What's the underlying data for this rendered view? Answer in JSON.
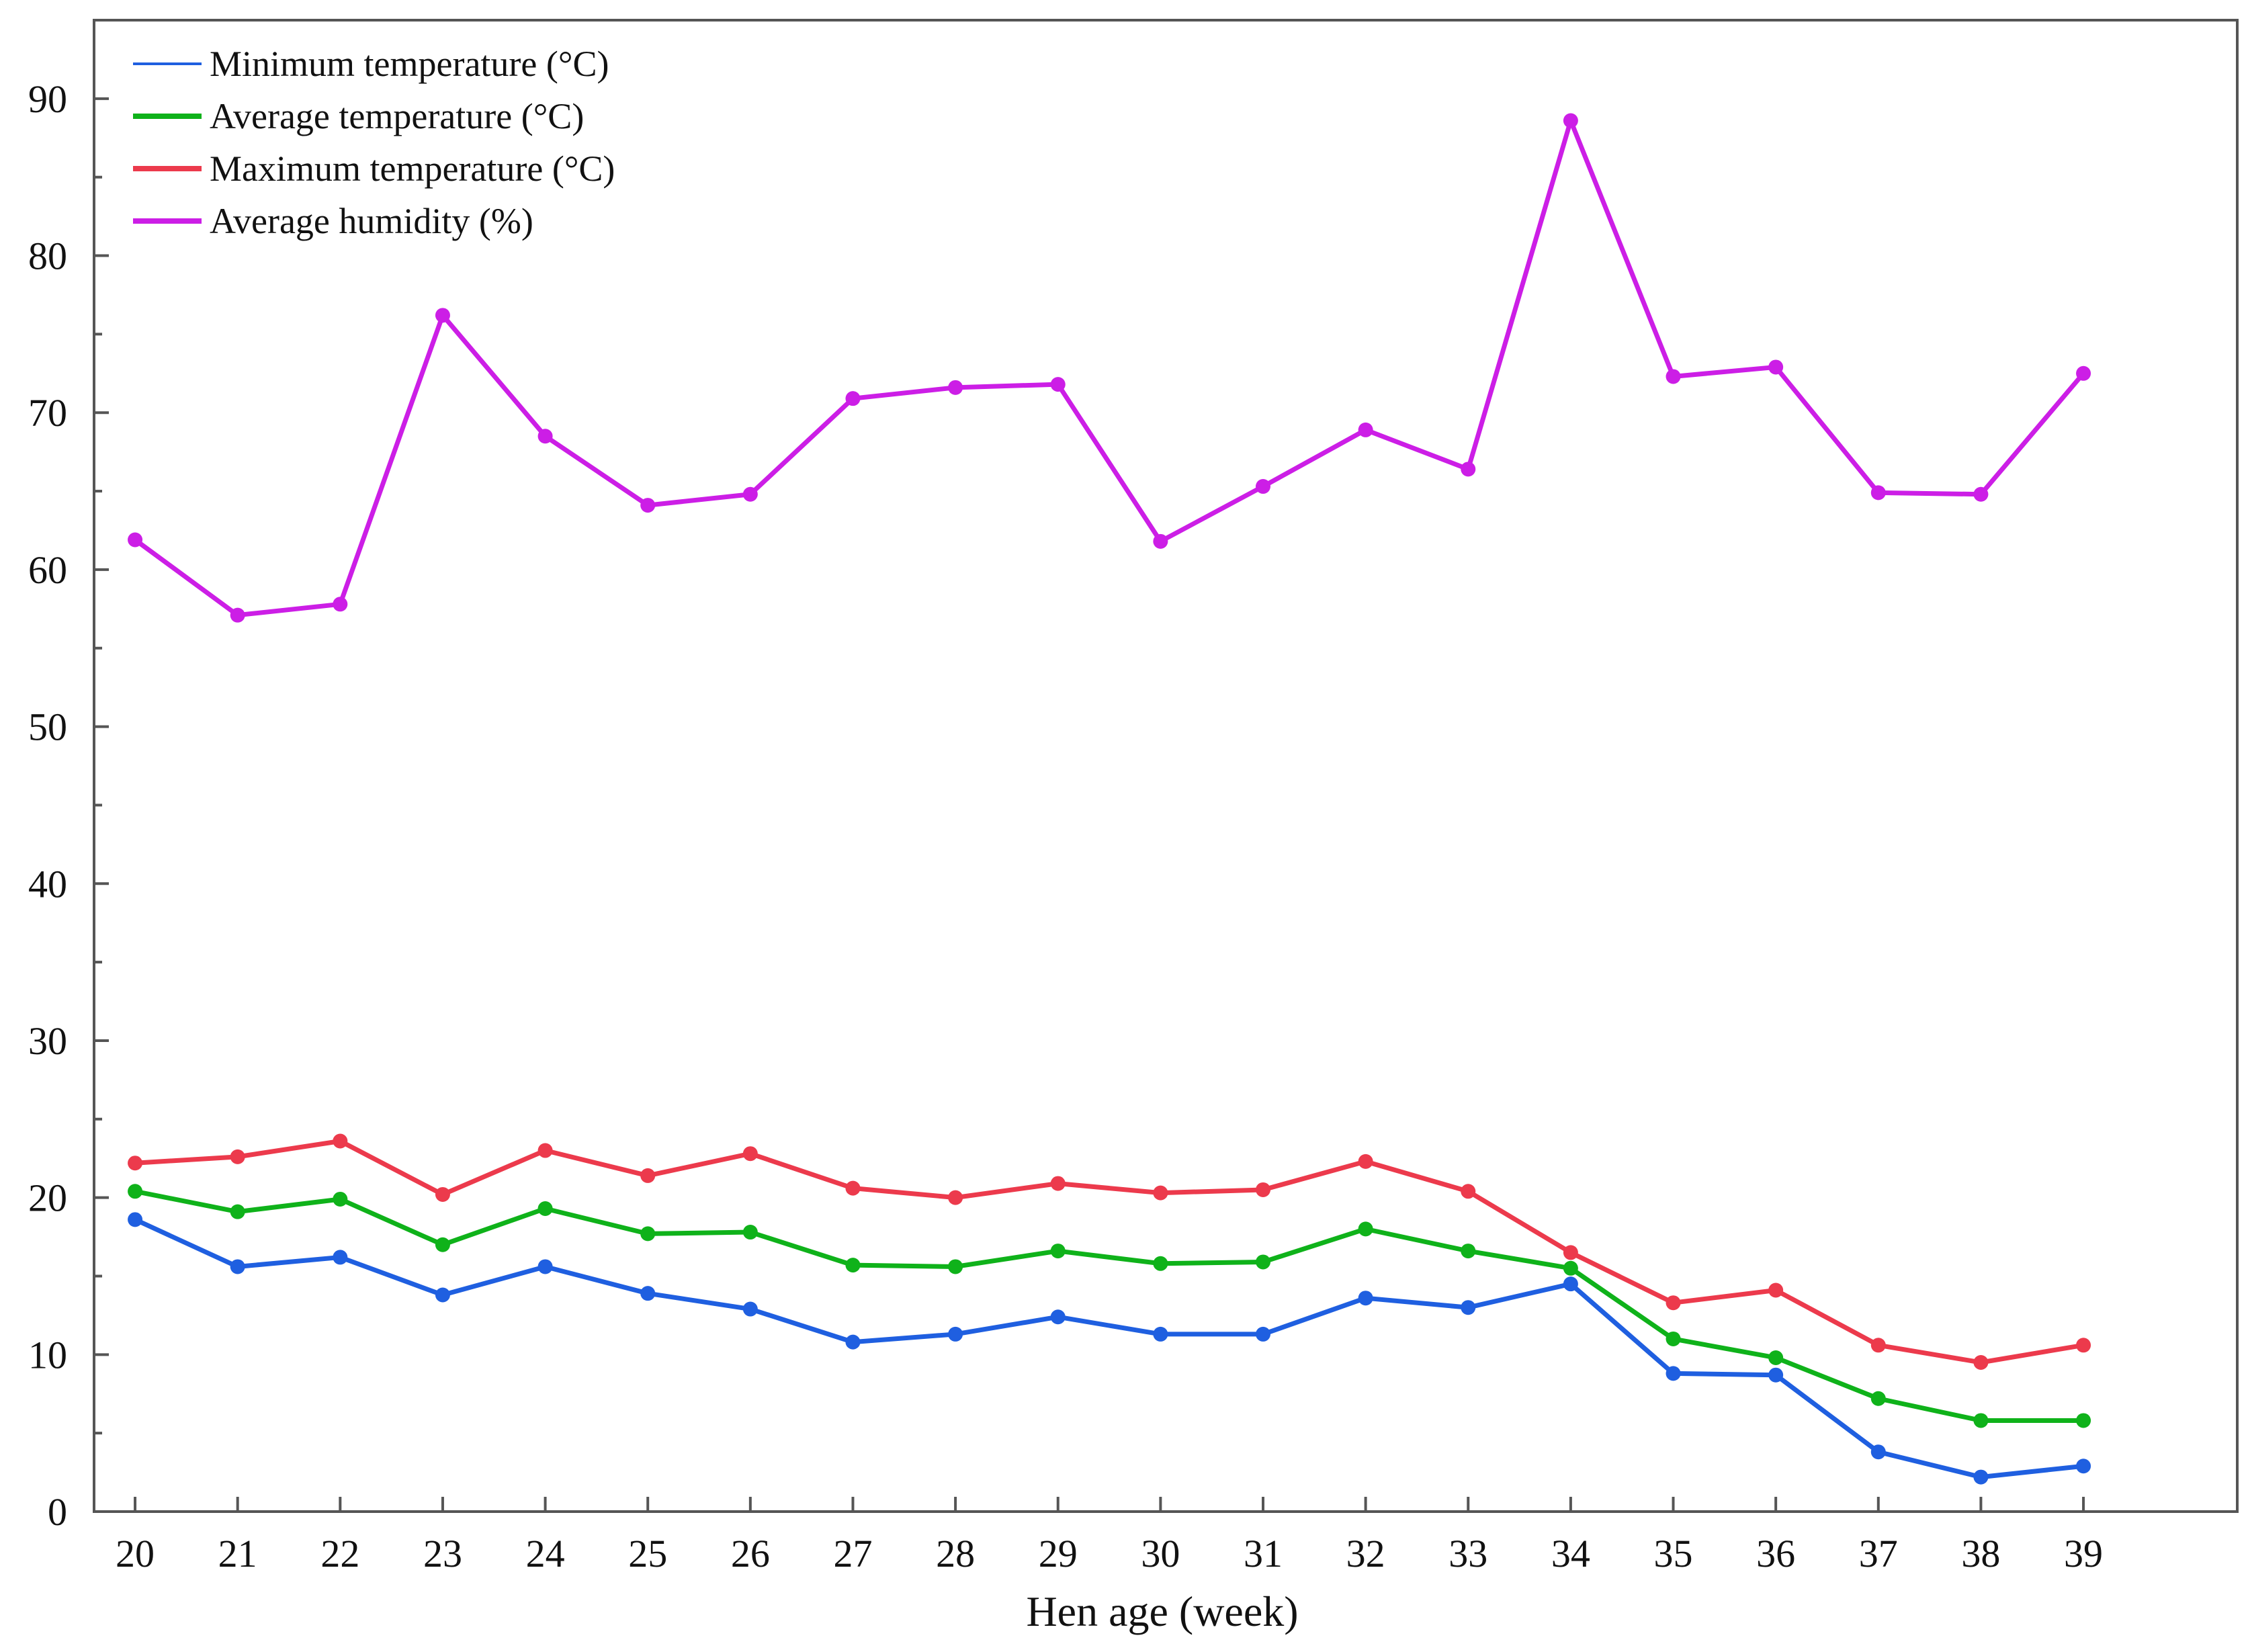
{
  "chart_data": {
    "type": "line",
    "title": "",
    "xlabel": "Hen age (week)",
    "ylabel": "",
    "x": [
      20,
      21,
      22,
      23,
      24,
      25,
      26,
      27,
      28,
      29,
      30,
      31,
      32,
      33,
      34,
      35,
      36,
      37,
      38,
      39
    ],
    "xlim": [
      19.6,
      40.5
    ],
    "ylim": [
      0,
      95
    ],
    "yticks": [
      0,
      10,
      20,
      30,
      40,
      50,
      60,
      70,
      80,
      90
    ],
    "grid": false,
    "legend_position": "top-left",
    "series": [
      {
        "name": "Minimum temperature (°C)",
        "color": "#1f5fe0",
        "values": [
          18.6,
          15.6,
          16.2,
          13.8,
          15.6,
          13.9,
          12.9,
          10.8,
          11.3,
          12.4,
          11.3,
          11.3,
          13.6,
          13.0,
          14.5,
          8.8,
          8.7,
          3.8,
          2.2,
          2.9
        ]
      },
      {
        "name": "Average temperature (°C)",
        "color": "#0fb21a",
        "values": [
          20.4,
          19.1,
          19.9,
          17.0,
          19.3,
          17.7,
          17.8,
          15.7,
          15.6,
          16.6,
          15.8,
          15.9,
          18.0,
          16.6,
          15.5,
          11.0,
          9.8,
          7.2,
          5.8,
          5.8
        ]
      },
      {
        "name": "Maximum temperature (°C)",
        "color": "#ec3a4c",
        "values": [
          22.2,
          22.6,
          23.6,
          20.2,
          23.0,
          21.4,
          22.8,
          20.6,
          20.0,
          20.9,
          20.3,
          20.5,
          22.3,
          20.4,
          16.5,
          13.3,
          14.1,
          10.6,
          9.5,
          10.6
        ]
      },
      {
        "name": "Average humidity (%)",
        "color": "#cc1ee6",
        "values": [
          61.9,
          57.1,
          57.8,
          76.2,
          68.5,
          64.1,
          64.8,
          70.9,
          71.6,
          71.8,
          61.8,
          65.3,
          68.9,
          66.4,
          88.6,
          72.3,
          72.9,
          64.9,
          64.8,
          72.5
        ]
      }
    ]
  }
}
